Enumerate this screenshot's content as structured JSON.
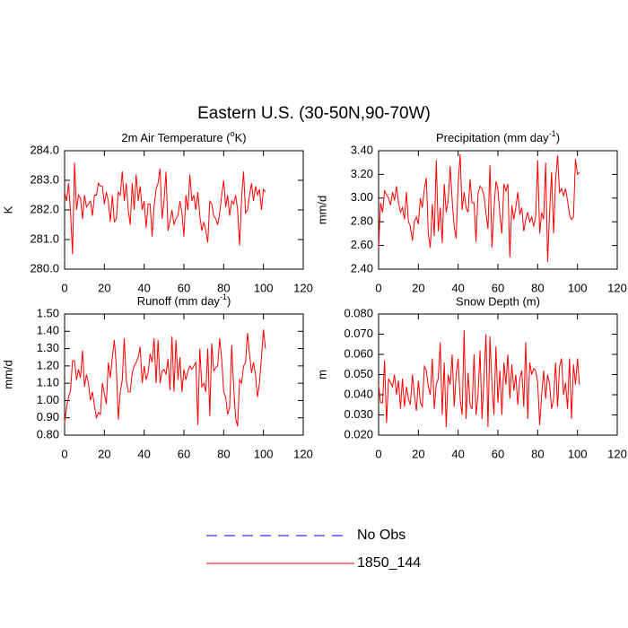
{
  "title": "Eastern U.S. (30-50N,90-70W)",
  "legend": [
    {
      "name": "No Obs",
      "color": "#0000ff",
      "dash": true
    },
    {
      "name": "1850_144",
      "color": "#ff0000",
      "dash": false
    }
  ],
  "chart_data": [
    {
      "type": "line",
      "title": {
        "text": "2m Air Temperature (",
        "sup": "o",
        "tail": "K)"
      },
      "y_label": "K",
      "xlim": [
        0,
        120
      ],
      "xticks": [
        0,
        20,
        40,
        60,
        80,
        100,
        120
      ],
      "ylim": [
        280,
        284
      ],
      "yticks": [
        {
          "value": 280,
          "label": "280.0"
        },
        {
          "value": 281,
          "label": "281.0"
        },
        {
          "value": 282,
          "label": "282.0"
        },
        {
          "value": 283,
          "label": "283.0"
        },
        {
          "value": 284,
          "label": "284.0"
        }
      ],
      "x": [
        0,
        1,
        2,
        3,
        4,
        5,
        6,
        7,
        8,
        9,
        10,
        11,
        12,
        13,
        14,
        15,
        16,
        17,
        18,
        19,
        20,
        21,
        22,
        23,
        24,
        25,
        26,
        27,
        28,
        29,
        30,
        31,
        32,
        33,
        34,
        35,
        36,
        37,
        38,
        39,
        40,
        41,
        42,
        43,
        44,
        45,
        46,
        47,
        48,
        49,
        50,
        51,
        52,
        53,
        54,
        55,
        56,
        57,
        58,
        59,
        60,
        61,
        62,
        63,
        64,
        65,
        66,
        67,
        68,
        69,
        70,
        71,
        72,
        73,
        74,
        75,
        76,
        77,
        78,
        79,
        80,
        81,
        82,
        83,
        84,
        85,
        86,
        87,
        88,
        89,
        90,
        91,
        92,
        93,
        94,
        95,
        96,
        97,
        98,
        99,
        100,
        101
      ],
      "series": [
        {
          "name": "1850_144",
          "color": "#ff0000",
          "values": [
            282.6,
            282.3,
            282.9,
            281.9,
            280.5,
            283.6,
            282.0,
            282.5,
            282.4,
            281.7,
            282.5,
            282.1,
            282.2,
            282.3,
            281.8,
            282.5,
            282.5,
            282.9,
            282.8,
            282.8,
            282.2,
            282.6,
            282.3,
            281.6,
            282.5,
            281.6,
            281.7,
            282.6,
            282.5,
            283.3,
            282.3,
            282.9,
            282.0,
            281.5,
            282.9,
            282.0,
            283.2,
            282.3,
            282.8,
            282.0,
            282.3,
            281.4,
            282.2,
            282.2,
            281.1,
            282.1,
            282.7,
            282.9,
            283.4,
            281.7,
            282.3,
            283.3,
            281.3,
            281.6,
            282.0,
            281.5,
            281.7,
            281.8,
            282.3,
            281.9,
            281.1,
            282.5,
            282.0,
            283.2,
            282.3,
            282.5,
            282.0,
            282.6,
            281.8,
            281.3,
            281.6,
            281.3,
            280.9,
            282.3,
            282.2,
            281.8,
            281.7,
            281.5,
            281.9,
            282.5,
            283.0,
            282.1,
            282.5,
            281.8,
            282.3,
            282.2,
            282.5,
            282.0,
            280.8,
            282.4,
            283.3,
            281.9,
            282.0,
            282.5,
            282.9,
            282.3,
            282.8,
            282.5,
            282.7,
            282.0,
            282.7,
            282.6
          ]
        }
      ]
    },
    {
      "type": "line",
      "title": {
        "text": "Precipitation (mm day",
        "sup": "-1",
        "tail": ")"
      },
      "y_label": "mm/d",
      "xlim": [
        0,
        120
      ],
      "xticks": [
        0,
        20,
        40,
        60,
        80,
        100,
        120
      ],
      "ylim": [
        2.4,
        3.4
      ],
      "yticks": [
        {
          "value": 2.4,
          "label": "2.40"
        },
        {
          "value": 2.6,
          "label": "2.60"
        },
        {
          "value": 2.8,
          "label": "2.80"
        },
        {
          "value": 3.0,
          "label": "3.00"
        },
        {
          "value": 3.2,
          "label": "3.20"
        },
        {
          "value": 3.4,
          "label": "3.40"
        }
      ],
      "x": [
        0,
        1,
        2,
        3,
        4,
        5,
        6,
        7,
        8,
        9,
        10,
        11,
        12,
        13,
        14,
        15,
        16,
        17,
        18,
        19,
        20,
        21,
        22,
        23,
        24,
        25,
        26,
        27,
        28,
        29,
        30,
        31,
        32,
        33,
        34,
        35,
        36,
        37,
        38,
        39,
        40,
        41,
        42,
        43,
        44,
        45,
        46,
        47,
        48,
        49,
        50,
        51,
        52,
        53,
        54,
        55,
        56,
        57,
        58,
        59,
        60,
        61,
        62,
        63,
        64,
        65,
        66,
        67,
        68,
        69,
        70,
        71,
        72,
        73,
        74,
        75,
        76,
        77,
        78,
        79,
        80,
        81,
        82,
        83,
        84,
        85,
        86,
        87,
        88,
        89,
        90,
        91,
        92,
        93,
        94,
        95,
        96,
        97,
        98,
        99,
        100,
        101
      ],
      "series": [
        {
          "name": "1850_144",
          "color": "#ff0000",
          "values": [
            2.58,
            2.96,
            2.88,
            3.06,
            3.03,
            3.0,
            2.94,
            3.05,
            2.98,
            3.1,
            2.96,
            2.88,
            2.92,
            2.82,
            3.05,
            2.8,
            2.76,
            2.64,
            2.8,
            2.84,
            2.78,
            3.0,
            2.92,
            3.08,
            3.17,
            2.7,
            2.58,
            2.95,
            2.68,
            3.32,
            2.72,
            2.92,
            2.62,
            3.12,
            2.88,
            2.98,
            3.27,
            2.98,
            2.76,
            2.66,
            3.12,
            3.37,
            2.9,
            3.05,
            2.92,
            2.88,
            3.16,
            2.96,
            2.96,
            2.63,
            3.04,
            3.1,
            3.08,
            3.02,
            2.87,
            2.74,
            3.28,
            2.58,
            2.9,
            3.14,
            3.08,
            2.86,
            2.7,
            3.12,
            3.06,
            3.12,
            2.5,
            2.94,
            2.82,
            2.92,
            3.05,
            2.86,
            2.92,
            2.72,
            2.82,
            2.88,
            2.8,
            2.84,
            2.76,
            2.85,
            3.32,
            2.7,
            2.88,
            2.82,
            3.3,
            2.46,
            2.88,
            3.22,
            2.7,
            3.15,
            3.36,
            3.05,
            3.08,
            3.02,
            3.08,
            2.98,
            2.86,
            2.82,
            2.84,
            3.33,
            3.2,
            3.22
          ]
        }
      ]
    },
    {
      "type": "line",
      "title": {
        "text": "Runoff (mm day",
        "sup": "-1",
        "tail": ")"
      },
      "y_label": "mm/d",
      "xlim": [
        0,
        120
      ],
      "xticks": [
        0,
        20,
        40,
        60,
        80,
        100,
        120
      ],
      "ylim": [
        0.8,
        1.5
      ],
      "yticks": [
        {
          "value": 0.8,
          "label": "0.80"
        },
        {
          "value": 0.9,
          "label": "0.90"
        },
        {
          "value": 1.0,
          "label": "1.00"
        },
        {
          "value": 1.1,
          "label": "1.10"
        },
        {
          "value": 1.2,
          "label": "1.20"
        },
        {
          "value": 1.3,
          "label": "1.30"
        },
        {
          "value": 1.4,
          "label": "1.40"
        },
        {
          "value": 1.5,
          "label": "1.50"
        }
      ],
      "x": [
        0,
        1,
        2,
        3,
        4,
        5,
        6,
        7,
        8,
        9,
        10,
        11,
        12,
        13,
        14,
        15,
        16,
        17,
        18,
        19,
        20,
        21,
        22,
        23,
        24,
        25,
        26,
        27,
        28,
        29,
        30,
        31,
        32,
        33,
        34,
        35,
        36,
        37,
        38,
        39,
        40,
        41,
        42,
        43,
        44,
        45,
        46,
        47,
        48,
        49,
        50,
        51,
        52,
        53,
        54,
        55,
        56,
        57,
        58,
        59,
        60,
        61,
        62,
        63,
        64,
        65,
        66,
        67,
        68,
        69,
        70,
        71,
        72,
        73,
        74,
        75,
        76,
        77,
        78,
        79,
        80,
        81,
        82,
        83,
        84,
        85,
        86,
        87,
        88,
        89,
        90,
        91,
        92,
        93,
        94,
        95,
        96,
        97,
        98,
        99,
        100,
        101
      ],
      "series": [
        {
          "name": "1850_144",
          "color": "#ff0000",
          "values": [
            0.87,
            0.96,
            1.02,
            1.06,
            1.23,
            1.23,
            1.12,
            1.18,
            1.13,
            1.29,
            1.08,
            1.15,
            1.1,
            1.0,
            1.05,
            0.97,
            0.9,
            0.93,
            0.92,
            1.1,
            1.04,
            0.98,
            1.22,
            1.13,
            1.25,
            1.35,
            1.2,
            0.89,
            1.05,
            1.12,
            1.36,
            1.12,
            1.05,
            1.05,
            1.16,
            1.2,
            1.22,
            1.25,
            1.31,
            1.1,
            1.2,
            1.12,
            1.16,
            1.27,
            1.22,
            1.36,
            1.1,
            1.35,
            1.1,
            1.17,
            1.18,
            1.15,
            1.24,
            1.06,
            1.37,
            1.05,
            1.35,
            1.12,
            1.25,
            1.05,
            1.18,
            1.12,
            1.17,
            1.2,
            1.18,
            1.2,
            1.22,
            0.86,
            1.3,
            1.08,
            1.1,
            1.05,
            1.3,
            0.91,
            1.33,
            1.17,
            1.19,
            1.2,
            1.36,
            1.24,
            1.05,
            1.02,
            0.92,
            0.96,
            1.32,
            1.08,
            0.9,
            0.85,
            1.12,
            1.1,
            1.2,
            1.22,
            1.39,
            1.27,
            1.16,
            1.22,
            1.15,
            1.02,
            1.1,
            1.25,
            1.41,
            1.3
          ]
        }
      ]
    },
    {
      "type": "line",
      "title": "Snow Depth (m)",
      "y_label": "m",
      "xlim": [
        0,
        120
      ],
      "xticks": [
        0,
        20,
        40,
        60,
        80,
        100,
        120
      ],
      "ylim": [
        0.02,
        0.08
      ],
      "yticks": [
        {
          "value": 0.02,
          "label": "0.020"
        },
        {
          "value": 0.03,
          "label": "0.030"
        },
        {
          "value": 0.04,
          "label": "0.040"
        },
        {
          "value": 0.05,
          "label": "0.050"
        },
        {
          "value": 0.06,
          "label": "0.060"
        },
        {
          "value": 0.07,
          "label": "0.070"
        },
        {
          "value": 0.08,
          "label": "0.080"
        }
      ],
      "x": [
        0,
        1,
        2,
        3,
        4,
        5,
        6,
        7,
        8,
        9,
        10,
        11,
        12,
        13,
        14,
        15,
        16,
        17,
        18,
        19,
        20,
        21,
        22,
        23,
        24,
        25,
        26,
        27,
        28,
        29,
        30,
        31,
        32,
        33,
        34,
        35,
        36,
        37,
        38,
        39,
        40,
        41,
        42,
        43,
        44,
        45,
        46,
        47,
        48,
        49,
        50,
        51,
        52,
        53,
        54,
        55,
        56,
        57,
        58,
        59,
        60,
        61,
        62,
        63,
        64,
        65,
        66,
        67,
        68,
        69,
        70,
        71,
        72,
        73,
        74,
        75,
        76,
        77,
        78,
        79,
        80,
        81,
        82,
        83,
        84,
        85,
        86,
        87,
        88,
        89,
        90,
        91,
        92,
        93,
        94,
        95,
        96,
        97,
        98,
        99,
        100,
        101
      ],
      "series": [
        {
          "name": "1850_144",
          "color": "#ff0000",
          "values": [
            0.045,
            0.036,
            0.036,
            0.057,
            0.026,
            0.048,
            0.046,
            0.044,
            0.05,
            0.04,
            0.047,
            0.033,
            0.048,
            0.034,
            0.044,
            0.038,
            0.035,
            0.05,
            0.04,
            0.032,
            0.047,
            0.036,
            0.034,
            0.054,
            0.052,
            0.044,
            0.04,
            0.058,
            0.033,
            0.045,
            0.048,
            0.066,
            0.03,
            0.056,
            0.024,
            0.05,
            0.045,
            0.06,
            0.034,
            0.05,
            0.058,
            0.038,
            0.03,
            0.072,
            0.028,
            0.051,
            0.035,
            0.033,
            0.06,
            0.03,
            0.04,
            0.062,
            0.028,
            0.048,
            0.07,
            0.024,
            0.069,
            0.045,
            0.03,
            0.064,
            0.036,
            0.052,
            0.03,
            0.056,
            0.045,
            0.06,
            0.038,
            0.055,
            0.042,
            0.05,
            0.035,
            0.048,
            0.052,
            0.034,
            0.066,
            0.028,
            0.056,
            0.05,
            0.053,
            0.052,
            0.046,
            0.025,
            0.04,
            0.052,
            0.038,
            0.05,
            0.045,
            0.033,
            0.038,
            0.056,
            0.034,
            0.054,
            0.058,
            0.04,
            0.046,
            0.033,
            0.058,
            0.028,
            0.055,
            0.045,
            0.058,
            0.045
          ]
        }
      ]
    }
  ]
}
